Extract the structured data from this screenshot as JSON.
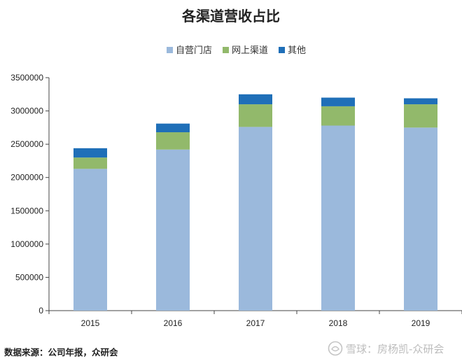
{
  "chart_data": {
    "type": "bar",
    "stacked": true,
    "title": "各渠道营收占比",
    "categories": [
      "2015",
      "2016",
      "2017",
      "2018",
      "2019"
    ],
    "series": [
      {
        "name": "自营门店",
        "color": "#9bb9dc",
        "values": [
          2130000,
          2420000,
          2760000,
          2780000,
          2750000
        ]
      },
      {
        "name": "网上渠道",
        "color": "#92b96b",
        "values": [
          170000,
          260000,
          340000,
          290000,
          350000
        ]
      },
      {
        "name": "其他",
        "color": "#1f6fb8",
        "values": [
          140000,
          130000,
          150000,
          130000,
          90000
        ]
      }
    ],
    "ylim": [
      0,
      3500000
    ],
    "yticks": [
      0,
      500000,
      1000000,
      1500000,
      2000000,
      2500000,
      3000000,
      3500000
    ],
    "legend_position": "top-center",
    "grid": false
  },
  "source_text": "数据来源：公司年报，众研会",
  "watermark": "雪球：房杨凯-众研会"
}
